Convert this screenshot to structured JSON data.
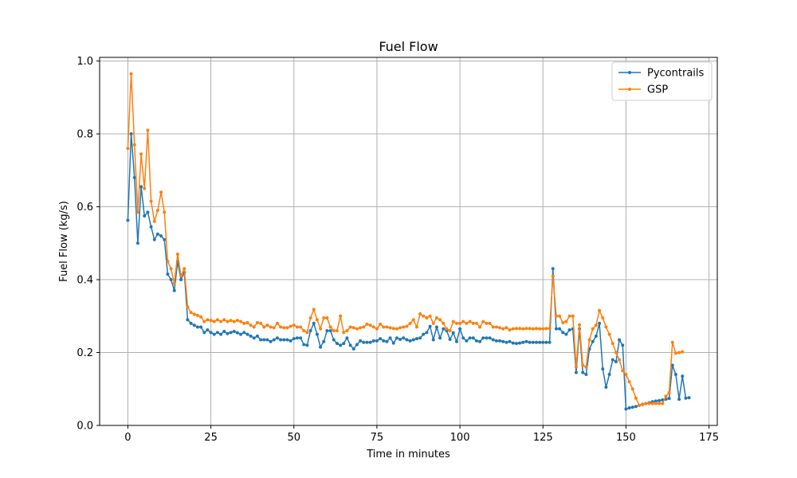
{
  "chart_data": {
    "type": "line",
    "title": "Fuel Flow",
    "xlabel": "Time in minutes",
    "ylabel": "Fuel Flow (kg/s)",
    "xlim": [
      -8.5,
      177.5
    ],
    "ylim": [
      0.0,
      1.01
    ],
    "xticks": [
      0,
      25,
      50,
      75,
      100,
      125,
      150,
      175
    ],
    "yticks": [
      0.0,
      0.2,
      0.4,
      0.6,
      0.8,
      1.0
    ],
    "xtick_labels": [
      "0",
      "25",
      "50",
      "75",
      "100",
      "125",
      "150",
      "175"
    ],
    "ytick_labels": [
      "0.0",
      "0.2",
      "0.4",
      "0.6",
      "0.8",
      "1.0"
    ],
    "grid": true,
    "legend_position": "top-right",
    "series": [
      {
        "name": "Pycontrails",
        "color": "#1f77b4",
        "x": [
          0,
          1,
          2,
          3,
          4,
          5,
          6,
          7,
          8,
          9,
          10,
          11,
          12,
          13,
          14,
          15,
          16,
          17,
          18,
          19,
          20,
          21,
          22,
          23,
          24,
          25,
          26,
          27,
          28,
          29,
          30,
          31,
          32,
          33,
          34,
          35,
          36,
          37,
          38,
          39,
          40,
          41,
          42,
          43,
          44,
          45,
          46,
          47,
          48,
          49,
          50,
          51,
          52,
          53,
          54,
          55,
          56,
          57,
          58,
          59,
          60,
          61,
          62,
          63,
          64,
          65,
          66,
          67,
          68,
          69,
          70,
          71,
          72,
          73,
          74,
          75,
          76,
          77,
          78,
          79,
          80,
          81,
          82,
          83,
          84,
          85,
          86,
          87,
          88,
          89,
          90,
          91,
          92,
          93,
          94,
          95,
          96,
          97,
          98,
          99,
          100,
          101,
          102,
          103,
          104,
          105,
          106,
          107,
          108,
          109,
          110,
          111,
          112,
          113,
          114,
          115,
          116,
          117,
          118,
          119,
          120,
          121,
          122,
          123,
          124,
          125,
          126,
          127,
          128,
          129,
          130,
          131,
          132,
          133,
          134,
          135,
          136,
          137,
          138,
          139,
          140,
          141,
          142,
          143,
          144,
          145,
          146,
          147,
          148,
          149,
          150,
          151,
          152,
          153,
          154,
          155,
          156,
          157,
          158,
          159,
          160,
          161,
          162,
          163,
          164,
          165,
          166,
          167,
          168,
          169
        ],
        "y": [
          0.563,
          0.8,
          0.68,
          0.5,
          0.655,
          0.575,
          0.585,
          0.545,
          0.51,
          0.525,
          0.52,
          0.51,
          0.415,
          0.4,
          0.37,
          0.45,
          0.4,
          0.42,
          0.29,
          0.28,
          0.275,
          0.27,
          0.27,
          0.255,
          0.262,
          0.255,
          0.25,
          0.255,
          0.25,
          0.258,
          0.252,
          0.255,
          0.258,
          0.254,
          0.25,
          0.255,
          0.25,
          0.245,
          0.24,
          0.245,
          0.235,
          0.235,
          0.235,
          0.23,
          0.235,
          0.24,
          0.235,
          0.235,
          0.235,
          0.232,
          0.238,
          0.24,
          0.24,
          0.222,
          0.22,
          0.26,
          0.28,
          0.25,
          0.215,
          0.23,
          0.26,
          0.26,
          0.235,
          0.225,
          0.22,
          0.225,
          0.24,
          0.22,
          0.21,
          0.222,
          0.232,
          0.228,
          0.228,
          0.228,
          0.232,
          0.232,
          0.238,
          0.232,
          0.23,
          0.24,
          0.226,
          0.24,
          0.236,
          0.24,
          0.235,
          0.232,
          0.235,
          0.238,
          0.24,
          0.25,
          0.255,
          0.272,
          0.235,
          0.27,
          0.24,
          0.265,
          0.26,
          0.236,
          0.254,
          0.23,
          0.265,
          0.24,
          0.232,
          0.24,
          0.24,
          0.232,
          0.23,
          0.24,
          0.24,
          0.24,
          0.235,
          0.232,
          0.232,
          0.23,
          0.228,
          0.23,
          0.226,
          0.225,
          0.226,
          0.228,
          0.23,
          0.228,
          0.228,
          0.228,
          0.228,
          0.228,
          0.228,
          0.228,
          0.43,
          0.265,
          0.265,
          0.255,
          0.25,
          0.262,
          0.265,
          0.145,
          0.265,
          0.145,
          0.14,
          0.21,
          0.23,
          0.245,
          0.28,
          0.155,
          0.105,
          0.14,
          0.18,
          0.175,
          0.235,
          0.22,
          0.045,
          0.048,
          0.05,
          0.052,
          0.055,
          0.058,
          0.06,
          0.062,
          0.065,
          0.067,
          0.068,
          0.07,
          0.072,
          0.074,
          0.165,
          0.14,
          0.072,
          0.135,
          0.075,
          0.076
        ]
      },
      {
        "name": "GSP",
        "color": "#ff7f0e",
        "x": [
          0,
          1,
          2,
          3,
          4,
          5,
          6,
          7,
          8,
          9,
          10,
          11,
          12,
          13,
          14,
          15,
          16,
          17,
          18,
          19,
          20,
          21,
          22,
          23,
          24,
          25,
          26,
          27,
          28,
          29,
          30,
          31,
          32,
          33,
          34,
          35,
          36,
          37,
          38,
          39,
          40,
          41,
          42,
          43,
          44,
          45,
          46,
          47,
          48,
          49,
          50,
          51,
          52,
          53,
          54,
          55,
          56,
          57,
          58,
          59,
          60,
          61,
          62,
          63,
          64,
          65,
          66,
          67,
          68,
          69,
          70,
          71,
          72,
          73,
          74,
          75,
          76,
          77,
          78,
          79,
          80,
          81,
          82,
          83,
          84,
          85,
          86,
          87,
          88,
          89,
          90,
          91,
          92,
          93,
          94,
          95,
          96,
          97,
          98,
          99,
          100,
          101,
          102,
          103,
          104,
          105,
          106,
          107,
          108,
          109,
          110,
          111,
          112,
          113,
          114,
          115,
          116,
          117,
          118,
          119,
          120,
          121,
          122,
          123,
          124,
          125,
          126,
          127,
          128,
          129,
          130,
          131,
          132,
          133,
          134,
          135,
          136,
          137,
          138,
          139,
          140,
          141,
          142,
          143,
          144,
          145,
          146,
          147,
          148,
          149,
          150,
          151,
          152,
          153,
          154,
          155,
          156,
          157,
          158,
          159,
          160,
          161,
          162,
          163,
          164,
          165,
          166,
          167
        ],
        "y": [
          0.76,
          0.965,
          0.77,
          0.585,
          0.745,
          0.65,
          0.81,
          0.615,
          0.56,
          0.59,
          0.64,
          0.585,
          0.45,
          0.43,
          0.39,
          0.47,
          0.41,
          0.43,
          0.325,
          0.31,
          0.305,
          0.302,
          0.298,
          0.285,
          0.29,
          0.288,
          0.285,
          0.29,
          0.285,
          0.29,
          0.285,
          0.288,
          0.285,
          0.288,
          0.285,
          0.28,
          0.282,
          0.275,
          0.27,
          0.282,
          0.28,
          0.27,
          0.275,
          0.27,
          0.268,
          0.28,
          0.27,
          0.268,
          0.268,
          0.272,
          0.275,
          0.27,
          0.27,
          0.26,
          0.255,
          0.295,
          0.318,
          0.29,
          0.265,
          0.295,
          0.295,
          0.27,
          0.26,
          0.26,
          0.3,
          0.255,
          0.26,
          0.27,
          0.268,
          0.265,
          0.268,
          0.27,
          0.278,
          0.275,
          0.27,
          0.265,
          0.278,
          0.27,
          0.27,
          0.268,
          0.266,
          0.265,
          0.268,
          0.27,
          0.272,
          0.28,
          0.29,
          0.27,
          0.306,
          0.3,
          0.295,
          0.3,
          0.28,
          0.295,
          0.29,
          0.28,
          0.265,
          0.26,
          0.285,
          0.28,
          0.28,
          0.285,
          0.28,
          0.285,
          0.28,
          0.28,
          0.27,
          0.285,
          0.28,
          0.28,
          0.27,
          0.27,
          0.268,
          0.265,
          0.268,
          0.262,
          0.265,
          0.266,
          0.266,
          0.265,
          0.266,
          0.266,
          0.265,
          0.266,
          0.265,
          0.265,
          0.266,
          0.266,
          0.41,
          0.3,
          0.3,
          0.282,
          0.285,
          0.3,
          0.3,
          0.16,
          0.276,
          0.165,
          0.16,
          0.235,
          0.265,
          0.275,
          0.315,
          0.295,
          0.27,
          0.25,
          0.225,
          0.2,
          0.18,
          0.15,
          0.14,
          0.12,
          0.1,
          0.075,
          0.055,
          0.057,
          0.06,
          0.06,
          0.06,
          0.06,
          0.06,
          0.06,
          0.08,
          0.09,
          0.228,
          0.198,
          0.2,
          0.202
        ]
      }
    ]
  }
}
